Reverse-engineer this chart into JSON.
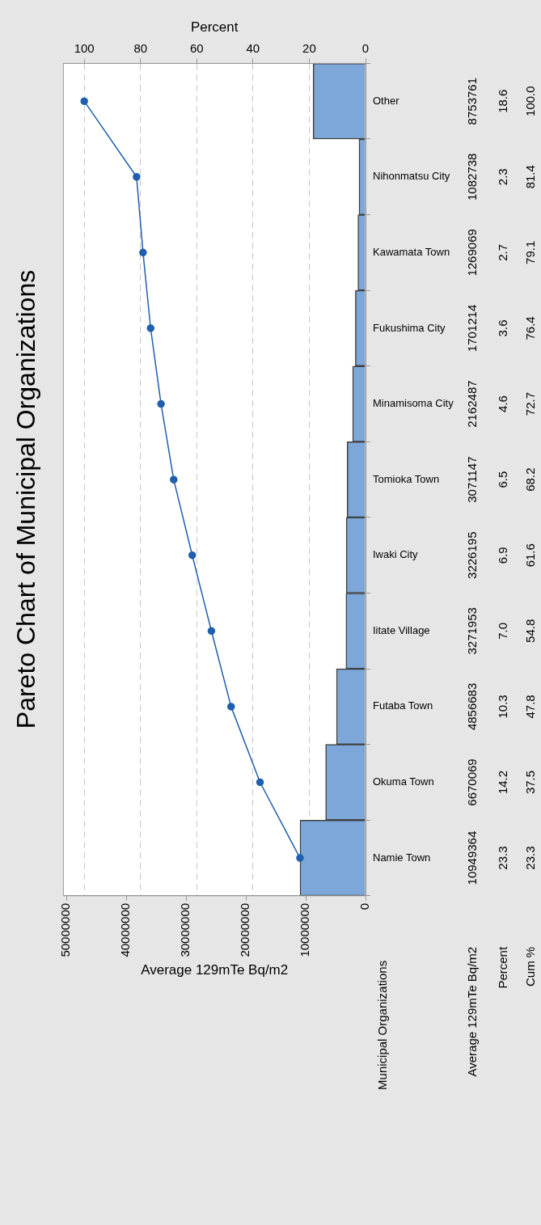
{
  "chart_data": {
    "type": "bar",
    "orientation": "horizontal",
    "title": "Pareto Chart of Municipal Organizations",
    "ylabel": "Municipal Organizations",
    "xlabel": "Average 129mTe Bq/m2",
    "x2label": "Percent",
    "categories": [
      "Other",
      "Nihonmatsu City",
      "Kawamata Town",
      "Fukushima City",
      "Minamisoma City",
      "Tomioka Town",
      "Iwaki City",
      "Iitate Village",
      "Futaba Town",
      "Okuma Town",
      "Namie Town"
    ],
    "series": [
      {
        "color": "#7da7d9",
        "values": [
          8753761,
          1082738,
          1269069,
          1701214,
          2162487,
          3071147,
          3226195,
          3271953,
          4856683,
          6670069,
          10949364
        ],
        "value_labels": [
          "8753761",
          "1082738",
          "1269069",
          "1701214",
          "2162487",
          "3071147",
          "3226195",
          "3271953",
          "4856683",
          "6670069",
          "10949364"
        ]
      },
      {
        "type": "line",
        "axis": "x2",
        "color": "#1f5fae",
        "values": [
          100.0,
          81.4,
          79.1,
          76.4,
          72.7,
          68.2,
          61.6,
          54.8,
          47.8,
          37.5,
          23.3
        ],
        "value_labels": [
          "100.0",
          "81.4",
          "79.1",
          "76.4",
          "72.7",
          "68.2",
          "61.6",
          "54.8",
          "47.8",
          "37.5",
          "23.3"
        ]
      }
    ],
    "xlim": [
      50500000,
      0
    ],
    "xticks": [
      0,
      10000000,
      20000000,
      30000000,
      40000000,
      50000000
    ],
    "x2lim": [
      107.41,
      0
    ],
    "x2ticks": [
      0,
      20,
      40,
      60,
      80,
      100
    ],
    "grid": "x",
    "legend": false,
    "marker": "circle",
    "line_style": "solid",
    "annotations": [
      "Average 129mTe Bq/m2",
      "Percent",
      "Cum %",
      "18.6",
      "2.3",
      "2.7",
      "3.6",
      "4.6",
      "6.5",
      "6.9",
      "7.0",
      "10.3",
      "14.2",
      "23.3"
    ]
  }
}
